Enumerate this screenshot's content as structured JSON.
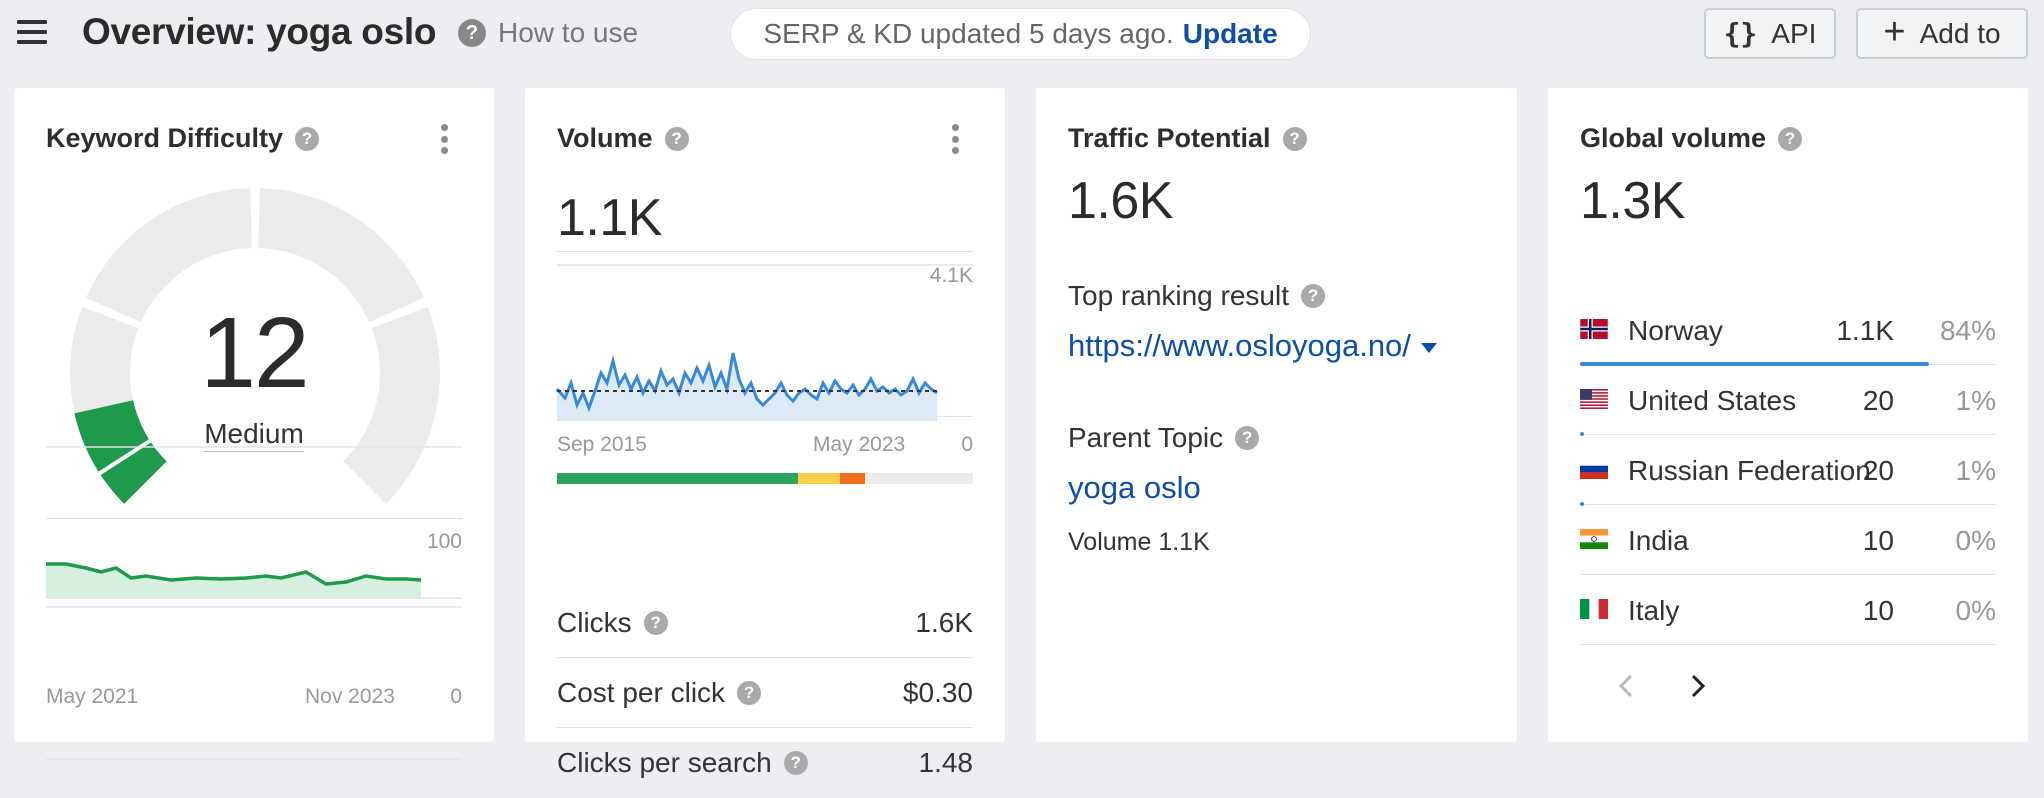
{
  "header": {
    "title": "Overview: yoga oslo",
    "how_to_use": "How to use",
    "serp_status": "SERP & KD updated 5 days ago.",
    "update_link": "Update",
    "api_label": "API",
    "add_to_label": "Add to"
  },
  "kd_card": {
    "title": "Keyword Difficulty",
    "value": "12",
    "level": "Medium",
    "chart_max": "100",
    "chart_min": "0",
    "x_start": "May 2021",
    "x_end": "Nov 2023",
    "colors": {
      "gauge_fill": "#1f9a4a",
      "gauge_track": "#ebebeb",
      "line": "#1f9a4a"
    }
  },
  "volume_card": {
    "title": "Volume",
    "value": "1.1K",
    "chart_max": "4.1K",
    "chart_min": "0",
    "x_start": "Sep 2015",
    "x_end": "May 2023",
    "intent_share": [
      {
        "name": "green",
        "share": 0.58,
        "color": "#2ba55b"
      },
      {
        "name": "yellow",
        "share": 0.1,
        "color": "#f6d04d"
      },
      {
        "name": "orange",
        "share": 0.06,
        "color": "#f26c1b"
      }
    ],
    "metrics": [
      {
        "label": "Clicks",
        "value": "1.6K",
        "help": true
      },
      {
        "label": "Cost per click",
        "value": "$0.30",
        "help": true
      },
      {
        "label": "Clicks per search",
        "value": "1.48",
        "help": true
      }
    ]
  },
  "traffic_card": {
    "title": "Traffic Potential",
    "value": "1.6K",
    "top_ranking_label": "Top ranking result",
    "top_ranking_url": "https://www.osloyoga.no/",
    "parent_topic_label": "Parent Topic",
    "parent_topic_link": "yoga oslo",
    "parent_volume": "Volume 1.1K"
  },
  "global_card": {
    "title": "Global volume",
    "value": "1.3K",
    "countries": [
      {
        "name": "Norway",
        "value": "1.1K",
        "pct": "84%",
        "share": 0.84,
        "flag": "norway-flag-icon"
      },
      {
        "name": "United States",
        "value": "20",
        "pct": "1%",
        "share": 0.01,
        "flag": "us-flag-icon"
      },
      {
        "name": "Russian Federation",
        "value": "20",
        "pct": "1%",
        "share": 0.01,
        "flag": "russia-flag-icon"
      },
      {
        "name": "India",
        "value": "10",
        "pct": "0%",
        "share": 0.0,
        "flag": "india-flag-icon"
      },
      {
        "name": "Italy",
        "value": "10",
        "pct": "0%",
        "share": 0.0,
        "flag": "italy-flag-icon"
      }
    ]
  }
}
